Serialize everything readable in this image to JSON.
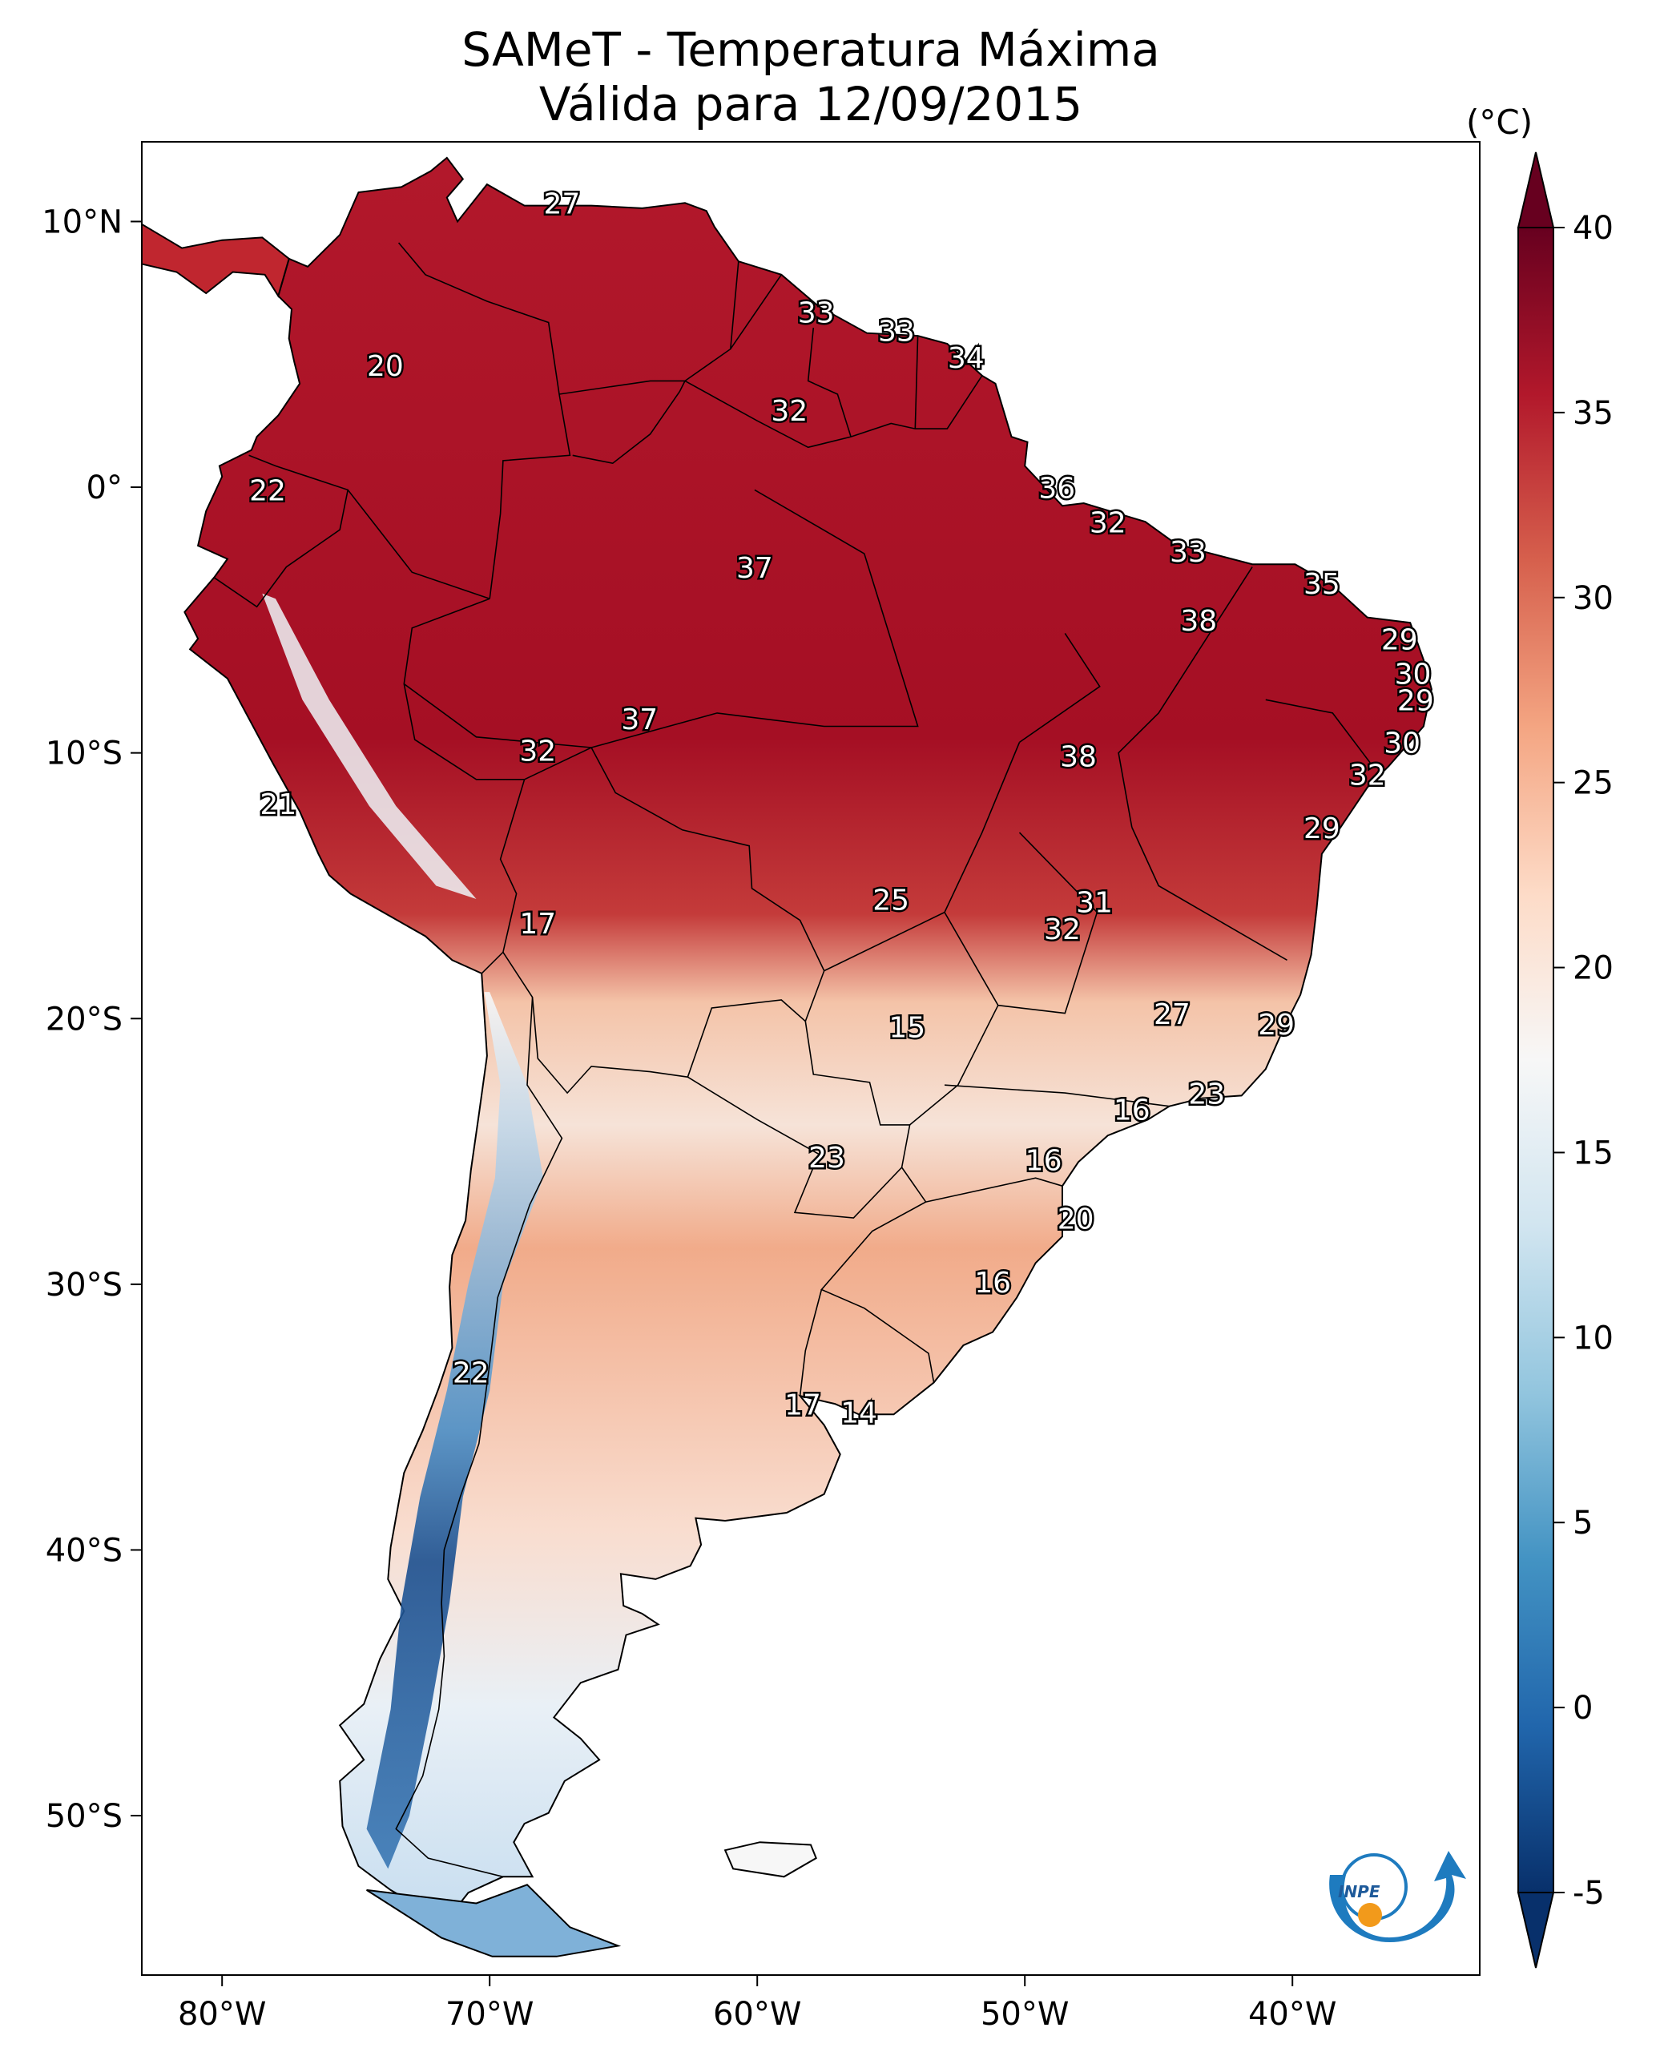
{
  "title": "SAMeT - Temperatura Máxima",
  "subtitle": "Válida para 12/09/2015",
  "colorbar": {
    "unit": "(°C)",
    "range": [
      -5,
      40
    ],
    "ticks": [
      "-5",
      "0",
      "5",
      "10",
      "15",
      "20",
      "25",
      "30",
      "35",
      "40"
    ],
    "colors": [
      "#08306b",
      "#2166ac",
      "#4393c3",
      "#92c5de",
      "#d1e5f0",
      "#f7f7f7",
      "#fddbc7",
      "#f4a582",
      "#d6604d",
      "#b2182b",
      "#67001f"
    ]
  },
  "axes": {
    "lon_range": [
      -83,
      -33
    ],
    "lat_range": [
      -56,
      13
    ],
    "x_ticks": [
      {
        "value": -80,
        "label": "80°W"
      },
      {
        "value": -70,
        "label": "70°W"
      },
      {
        "value": -60,
        "label": "60°W"
      },
      {
        "value": -50,
        "label": "50°W"
      },
      {
        "value": -40,
        "label": "40°W"
      }
    ],
    "y_ticks": [
      {
        "value": 10,
        "label": "10°N"
      },
      {
        "value": 0,
        "label": "0°"
      },
      {
        "value": -10,
        "label": "10°S"
      },
      {
        "value": -20,
        "label": "20°S"
      },
      {
        "value": -30,
        "label": "30°S"
      },
      {
        "value": -40,
        "label": "40°S"
      },
      {
        "value": -50,
        "label": "50°S"
      }
    ]
  },
  "stations": [
    {
      "lon": -67.3,
      "lat": 10.6,
      "value": "27"
    },
    {
      "lon": -73.9,
      "lat": 4.5,
      "value": "20"
    },
    {
      "lon": -78.3,
      "lat": -0.2,
      "value": "22"
    },
    {
      "lon": -57.8,
      "lat": 6.5,
      "value": "33"
    },
    {
      "lon": -54.8,
      "lat": 5.8,
      "value": "33"
    },
    {
      "lon": -52.2,
      "lat": 4.8,
      "value": "34"
    },
    {
      "lon": -58.8,
      "lat": 2.8,
      "value": "32"
    },
    {
      "lon": -48.8,
      "lat": -0.1,
      "value": "36"
    },
    {
      "lon": -60.1,
      "lat": -3.1,
      "value": "37"
    },
    {
      "lon": -46.9,
      "lat": -1.4,
      "value": "32"
    },
    {
      "lon": -43.9,
      "lat": -2.5,
      "value": "33"
    },
    {
      "lon": -38.9,
      "lat": -3.7,
      "value": "35"
    },
    {
      "lon": -43.5,
      "lat": -5.1,
      "value": "38"
    },
    {
      "lon": -36.0,
      "lat": -5.8,
      "value": "29"
    },
    {
      "lon": -35.5,
      "lat": -7.1,
      "value": "30"
    },
    {
      "lon": -35.4,
      "lat": -8.1,
      "value": "29"
    },
    {
      "lon": -64.4,
      "lat": -8.8,
      "value": "37"
    },
    {
      "lon": -68.2,
      "lat": -10.0,
      "value": "32"
    },
    {
      "lon": -48.0,
      "lat": -10.2,
      "value": "38"
    },
    {
      "lon": -35.9,
      "lat": -9.7,
      "value": "30"
    },
    {
      "lon": -37.2,
      "lat": -10.9,
      "value": "32"
    },
    {
      "lon": -77.9,
      "lat": -12.0,
      "value": "21"
    },
    {
      "lon": -38.9,
      "lat": -12.9,
      "value": "29"
    },
    {
      "lon": -55.0,
      "lat": -15.6,
      "value": "25"
    },
    {
      "lon": -47.4,
      "lat": -15.7,
      "value": "31"
    },
    {
      "lon": -48.6,
      "lat": -16.7,
      "value": "32"
    },
    {
      "lon": -68.2,
      "lat": -16.5,
      "value": "17"
    },
    {
      "lon": -44.5,
      "lat": -19.9,
      "value": "27"
    },
    {
      "lon": -40.6,
      "lat": -20.3,
      "value": "29"
    },
    {
      "lon": -54.4,
      "lat": -20.4,
      "value": "15"
    },
    {
      "lon": -43.2,
      "lat": -22.9,
      "value": "23"
    },
    {
      "lon": -46.0,
      "lat": -23.5,
      "value": "16"
    },
    {
      "lon": -57.4,
      "lat": -25.3,
      "value": "23"
    },
    {
      "lon": -49.3,
      "lat": -25.4,
      "value": "16"
    },
    {
      "lon": -48.1,
      "lat": -27.6,
      "value": "20"
    },
    {
      "lon": -51.2,
      "lat": -30.0,
      "value": "16"
    },
    {
      "lon": -70.7,
      "lat": -33.4,
      "value": "22"
    },
    {
      "lon": -58.3,
      "lat": -34.6,
      "value": "17"
    },
    {
      "lon": -56.2,
      "lat": -34.9,
      "value": "14"
    }
  ]
}
